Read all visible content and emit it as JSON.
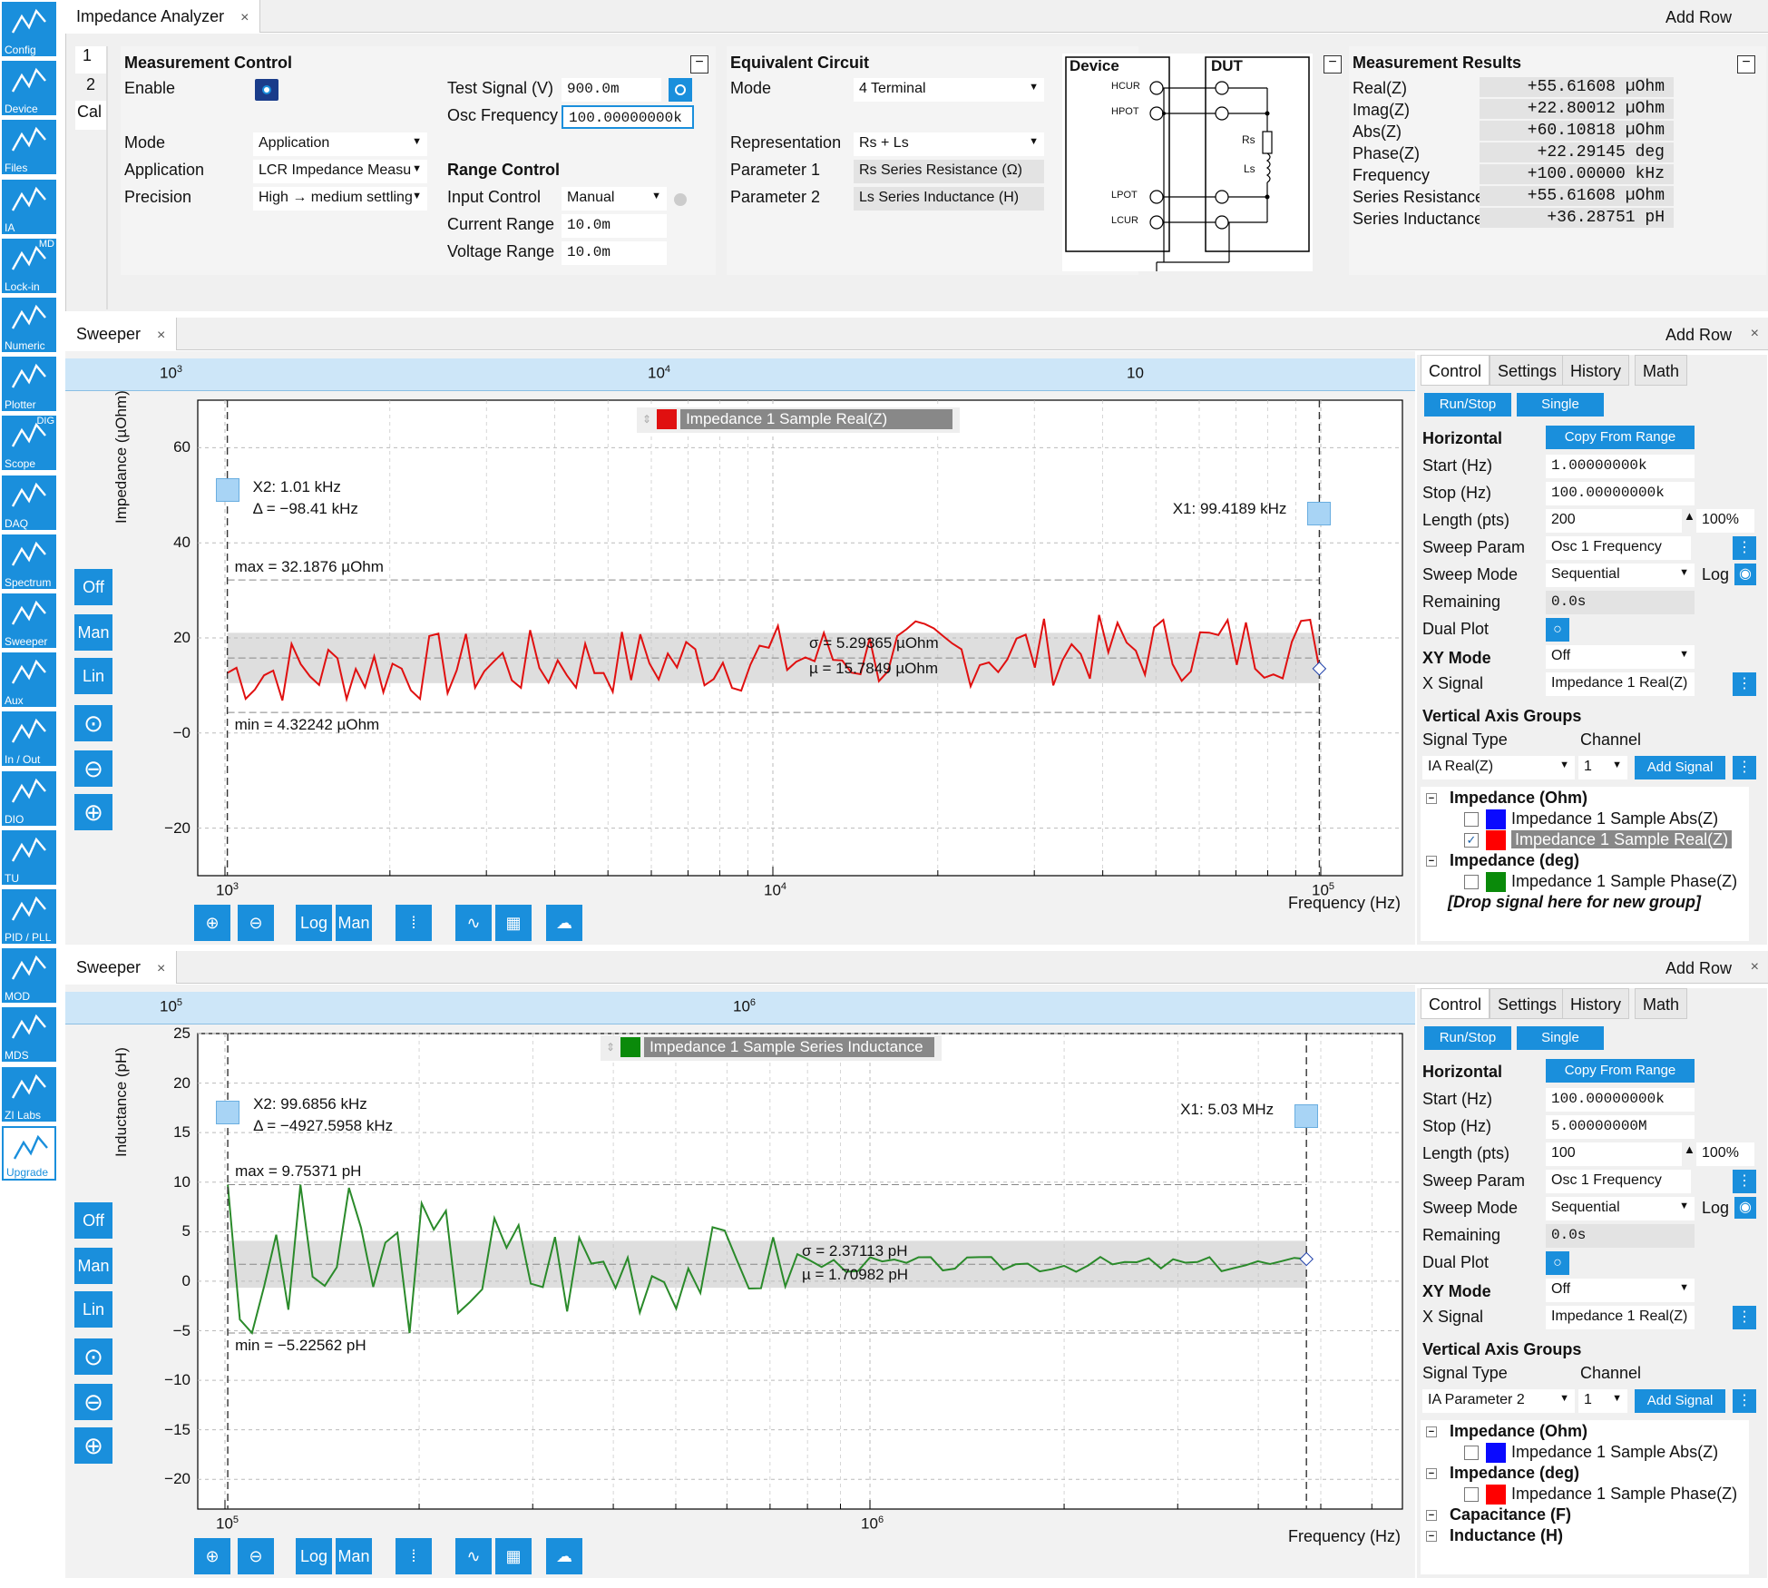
{
  "sidebar": [
    {
      "label": "Config",
      "icon": "gear-icon"
    },
    {
      "label": "Device",
      "icon": "device-icon"
    },
    {
      "label": "Files",
      "icon": "folder-icon"
    },
    {
      "label": "IA",
      "icon": "impedance-icon"
    },
    {
      "label": "Lock-in",
      "icon": "lockin-icon",
      "tag": "MD"
    },
    {
      "label": "Numeric",
      "icon": "numeric-icon"
    },
    {
      "label": "Plotter",
      "icon": "plotter-icon"
    },
    {
      "label": "Scope",
      "icon": "scope-icon",
      "tag": "DIG"
    },
    {
      "label": "DAQ",
      "icon": "daq-icon"
    },
    {
      "label": "Spectrum",
      "icon": "spectrum-icon"
    },
    {
      "label": "Sweeper",
      "icon": "sweeper-icon"
    },
    {
      "label": "Aux",
      "icon": "aux-icon"
    },
    {
      "label": "In / Out",
      "icon": "inout-icon"
    },
    {
      "label": "DIO",
      "icon": "dio-icon"
    },
    {
      "label": "TU",
      "icon": "tu-icon"
    },
    {
      "label": "PID / PLL",
      "icon": "pid-icon"
    },
    {
      "label": "MOD",
      "icon": "mod-icon"
    },
    {
      "label": "MDS",
      "icon": "mds-icon"
    },
    {
      "label": "ZI Labs",
      "icon": "flask-icon"
    },
    {
      "label": "Upgrade",
      "icon": "upgrade-icon"
    }
  ],
  "ia": {
    "tab": "Impedance Analyzer",
    "add_row": "Add Row",
    "close": "×",
    "side_tabs": [
      "1",
      "2",
      "Cal"
    ],
    "mc": {
      "title": "Measurement Control",
      "enable": "Enable",
      "test_signal": "Test Signal (V)",
      "test_signal_val": "900.0m",
      "osc_freq": "Osc Frequency",
      "osc_freq_val": "100.00000000k",
      "mode": "Mode",
      "mode_val": "Application",
      "application": "Application",
      "application_val": "LCR Impedance Measu",
      "precision": "Precision",
      "precision_val": "High → medium settling"
    },
    "rc": {
      "title": "Range Control",
      "input_control": "Input Control",
      "input_control_val": "Manual",
      "current_range": "Current Range",
      "current_range_val": "10.0m",
      "voltage_range": "Voltage Range",
      "voltage_range_val": "10.0m"
    },
    "ec": {
      "title": "Equivalent Circuit",
      "mode": "Mode",
      "mode_val": "4 Terminal",
      "representation": "Representation",
      "representation_val": "Rs + Ls",
      "param1": "Parameter 1",
      "param1_val": "Rs Series Resistance (Ω)",
      "param2": "Parameter 2",
      "param2_val": "Ls Series Inductance (H)"
    },
    "diagram": {
      "device": "Device",
      "dut": "DUT",
      "hcur": "HCUR",
      "hpot": "HPOT",
      "lpot": "LPOT",
      "lcur": "LCUR",
      "rs": "Rs",
      "ls": "Ls"
    },
    "mr": {
      "title": "Measurement Results",
      "rows": [
        {
          "label": "Real(Z)",
          "value": "+55.61608 µOhm"
        },
        {
          "label": "Imag(Z)",
          "value": "+22.80012 µOhm"
        },
        {
          "label": "Abs(Z)",
          "value": "+60.10818 µOhm"
        },
        {
          "label": "Phase(Z)",
          "value": "+22.29145  deg"
        },
        {
          "label": "Frequency",
          "value": "+100.00000 kHz"
        },
        {
          "label": "Series Resistance",
          "value": "+55.61608 µOhm"
        },
        {
          "label": "Series Inductance",
          "value": "+36.28751 pH"
        }
      ]
    }
  },
  "sw1": {
    "tab": "Sweeper",
    "add_row": "Add Row",
    "close": "×",
    "top_ticks": [
      "10",
      "10",
      "10"
    ],
    "top_exps": [
      "3",
      "4",
      ""
    ],
    "ylabel": "Impedance (µOhm)",
    "xlabel": "Frequency (Hz)",
    "yticks": [
      "60",
      "40",
      "20",
      "−0",
      "−20"
    ],
    "xticks": [
      "10",
      "10",
      "10"
    ],
    "xexps": [
      "3",
      "4",
      "5"
    ],
    "legend": "Impedance 1 Sample Real(Z)",
    "legend_color": "#e01010",
    "x2_label": "X2: 1.01 kHz",
    "x2_delta": "Δ = −98.41 kHz",
    "x1_label": "X1: 99.4189 kHz",
    "max": "max = 32.1876 µOhm",
    "min": "min = 4.32242 µOhm",
    "sigma": "σ = 5.29365 µOhm",
    "mu": "µ = 15.7849 µOhm",
    "side": {
      "off": "Off",
      "man": "Man",
      "lin": "Lin"
    },
    "bottom": {
      "log": "Log",
      "man": "Man"
    },
    "control": {
      "tabs": [
        "Control",
        "Settings",
        "History",
        "Math"
      ],
      "run_stop": "Run/Stop",
      "single": "Single",
      "horizontal": "Horizontal",
      "copy_from_range": "Copy From Range",
      "start": "Start (Hz)",
      "start_val": "1.00000000k",
      "stop": "Stop (Hz)",
      "stop_val": "100.00000000k",
      "length": "Length (pts)",
      "length_val": "200",
      "length_pct": "100%",
      "sweep_param": "Sweep Param",
      "sweep_param_val": "Osc 1 Frequency",
      "sweep_mode": "Sweep Mode",
      "sweep_mode_val": "Sequential",
      "log": "Log",
      "remaining": "Remaining",
      "remaining_val": "0.0s",
      "dual_plot": "Dual Plot",
      "xy_mode": "XY Mode",
      "xy_mode_val": "Off",
      "x_signal": "X Signal",
      "x_signal_val": "Impedance 1 Real(Z)",
      "vag": "Vertical Axis Groups",
      "signal_type": "Signal Type",
      "channel": "Channel",
      "signal_type_val": "IA Real(Z)",
      "channel_val": "1",
      "add_signal": "Add Signal"
    },
    "tree": [
      {
        "t": "group",
        "text": "Impedance (Ohm)"
      },
      {
        "t": "item",
        "text": "Impedance 1 Sample Abs(Z)",
        "color": "#0a0aff",
        "checked": false
      },
      {
        "t": "item",
        "text": "Impedance 1 Sample Real(Z)",
        "color": "#ff0000",
        "checked": true,
        "selected": true
      },
      {
        "t": "group",
        "text": "Impedance (deg)"
      },
      {
        "t": "item",
        "text": "Impedance 1 Sample Phase(Z)",
        "color": "#0a8a0a",
        "checked": false
      },
      {
        "t": "drop",
        "text": "[Drop signal here for new group]"
      }
    ]
  },
  "sw2": {
    "tab": "Sweeper",
    "add_row": "Add Row",
    "close": "×",
    "top_ticks": [
      "10",
      "10"
    ],
    "top_exps": [
      "5",
      "6"
    ],
    "ylabel": "Inductance (pH)",
    "xlabel": "Frequency (Hz)",
    "yticks": [
      "25",
      "20",
      "15",
      "10",
      "5",
      "0",
      "−5",
      "−10",
      "−15",
      "−20"
    ],
    "xticks": [
      "10",
      "10"
    ],
    "xexps": [
      "5",
      "6"
    ],
    "legend": "Impedance 1 Sample Series Inductance",
    "legend_color": "#0a8a0a",
    "x2_label": "X2: 99.6856 kHz",
    "x2_delta": "Δ = −4927.5958 kHz",
    "x1_label": "X1: 5.03 MHz",
    "max": "max = 9.75371 pH",
    "min": "min = −5.22562 pH",
    "sigma": "σ = 2.37113 pH",
    "mu": "µ = 1.70982 pH",
    "side": {
      "off": "Off",
      "man": "Man",
      "lin": "Lin"
    },
    "bottom": {
      "log": "Log",
      "man": "Man"
    },
    "control": {
      "tabs": [
        "Control",
        "Settings",
        "History",
        "Math"
      ],
      "run_stop": "Run/Stop",
      "single": "Single",
      "horizontal": "Horizontal",
      "copy_from_range": "Copy From Range",
      "start": "Start (Hz)",
      "start_val": "100.00000000k",
      "stop": "Stop (Hz)",
      "stop_val": "5.00000000M",
      "length": "Length (pts)",
      "length_val": "100",
      "length_pct": "100%",
      "sweep_param": "Sweep Param",
      "sweep_param_val": "Osc 1 Frequency",
      "sweep_mode": "Sweep Mode",
      "sweep_mode_val": "Sequential",
      "log": "Log",
      "remaining": "Remaining",
      "remaining_val": "0.0s",
      "dual_plot": "Dual Plot",
      "xy_mode": "XY Mode",
      "xy_mode_val": "Off",
      "x_signal": "X Signal",
      "x_signal_val": "Impedance 1 Real(Z)",
      "vag": "Vertical Axis Groups",
      "signal_type": "Signal Type",
      "channel": "Channel",
      "signal_type_val": "IA Parameter 2",
      "channel_val": "1",
      "add_signal": "Add Signal"
    },
    "tree": [
      {
        "t": "group",
        "text": "Impedance (Ohm)"
      },
      {
        "t": "item",
        "text": "Impedance 1 Sample Abs(Z)",
        "color": "#0a0aff",
        "checked": false
      },
      {
        "t": "group",
        "text": "Impedance (deg)"
      },
      {
        "t": "item",
        "text": "Impedance 1 Sample Phase(Z)",
        "color": "#ff0000",
        "checked": false
      },
      {
        "t": "group",
        "text": "Capacitance (F)"
      },
      {
        "t": "group",
        "text": "Inductance (H)"
      }
    ]
  },
  "chart_data": [
    {
      "type": "line",
      "ylabel": "Impedance (µOhm)",
      "xlabel": "Frequency (Hz)",
      "xscale": "log",
      "xlim": [
        1000,
        100000
      ],
      "ylim": [
        -30,
        70
      ],
      "series": [
        {
          "name": "Impedance 1 Sample Real(Z)",
          "color": "#e01010",
          "seed": 7,
          "mean": 15.78,
          "std": 5.29,
          "min": 4.32,
          "max": 32.19,
          "trend": [
            12,
            14,
            16,
            17,
            19
          ]
        }
      ]
    },
    {
      "type": "line",
      "ylabel": "Inductance (pH)",
      "xlabel": "Frequency (Hz)",
      "xscale": "log",
      "xlim": [
        100000,
        5000000
      ],
      "ylim": [
        -23,
        25
      ],
      "series": [
        {
          "name": "Impedance 1 Sample Series Inductance",
          "color": "#2a8a2a",
          "seed": 3,
          "mean": 1.71,
          "std": 2.37,
          "min": -5.23,
          "max": 9.75
        }
      ]
    }
  ]
}
